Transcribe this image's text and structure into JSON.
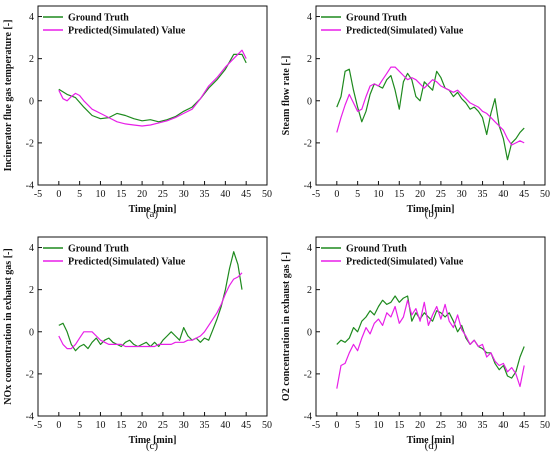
{
  "colors": {
    "ground_truth": "#1e8a1e",
    "predicted": "#e81fe8",
    "axis": "#111111"
  },
  "chart_data": [
    {
      "type": "line",
      "panel_label": "(a)",
      "xlabel": "Time [min]",
      "ylabel": "Incinerator flue gas temperature  [-]",
      "xlim": [
        -5,
        50
      ],
      "ylim": [
        -4,
        4.5
      ],
      "xticks": [
        -5,
        0,
        5,
        10,
        15,
        20,
        25,
        30,
        35,
        40,
        45,
        50
      ],
      "yticks": [
        -4,
        -2,
        0,
        2,
        4
      ],
      "legend_position": "top-left",
      "grid": false,
      "series": [
        {
          "name": "Ground Truth",
          "x": [
            0,
            2,
            4,
            6,
            8,
            10,
            12,
            14,
            16,
            18,
            20,
            22,
            24,
            26,
            28,
            30,
            32,
            34,
            36,
            38,
            40,
            42,
            44,
            45
          ],
          "y": [
            0.55,
            0.3,
            0.15,
            -0.3,
            -0.7,
            -0.85,
            -0.8,
            -0.6,
            -0.7,
            -0.85,
            -0.95,
            -0.9,
            -1.0,
            -0.9,
            -0.75,
            -0.5,
            -0.3,
            0.1,
            0.6,
            1.0,
            1.5,
            2.2,
            2.2,
            1.8
          ]
        },
        {
          "name": "Predicted(Simulated) Value",
          "x": [
            0,
            1,
            2,
            3,
            4,
            5,
            6,
            8,
            10,
            12,
            14,
            16,
            18,
            20,
            22,
            24,
            26,
            28,
            30,
            32,
            34,
            36,
            38,
            40,
            42,
            44,
            45
          ],
          "y": [
            0.5,
            0.1,
            0.0,
            0.2,
            0.35,
            0.25,
            0.0,
            -0.4,
            -0.6,
            -0.8,
            -1.0,
            -1.1,
            -1.15,
            -1.2,
            -1.15,
            -1.05,
            -0.95,
            -0.8,
            -0.6,
            -0.4,
            0.1,
            0.7,
            1.1,
            1.6,
            2.0,
            2.4,
            2.0
          ]
        }
      ]
    },
    {
      "type": "line",
      "panel_label": "(b)",
      "xlabel": "Time [min]",
      "ylabel": "Steam flow rate [-]",
      "xlim": [
        -5,
        50
      ],
      "ylim": [
        -4,
        4.5
      ],
      "xticks": [
        -5,
        0,
        5,
        10,
        15,
        20,
        25,
        30,
        35,
        40,
        45,
        50
      ],
      "yticks": [
        -4,
        -2,
        0,
        2,
        4
      ],
      "legend_position": "top-left",
      "grid": false,
      "series": [
        {
          "name": "Ground Truth",
          "x": [
            0,
            1,
            2,
            3,
            4,
            5,
            6,
            7,
            8,
            9,
            10,
            11,
            12,
            13,
            14,
            15,
            16,
            17,
            18,
            19,
            20,
            21,
            22,
            23,
            24,
            25,
            26,
            27,
            28,
            29,
            30,
            31,
            32,
            33,
            34,
            35,
            36,
            37,
            38,
            39,
            40,
            41,
            42,
            43,
            44,
            45
          ],
          "y": [
            -0.3,
            0.2,
            1.4,
            1.5,
            0.5,
            -0.3,
            -1.0,
            -0.5,
            0.3,
            0.8,
            0.7,
            0.6,
            1.0,
            1.2,
            0.5,
            -0.4,
            0.9,
            1.3,
            1.0,
            0.2,
            0.0,
            0.9,
            0.7,
            0.5,
            1.4,
            1.1,
            0.6,
            0.5,
            0.2,
            0.4,
            0.1,
            -0.1,
            -0.4,
            -0.3,
            -0.5,
            -0.8,
            -1.6,
            -0.6,
            0.1,
            -1.2,
            -1.8,
            -2.8,
            -2.0,
            -1.8,
            -1.5,
            -1.3
          ]
        },
        {
          "name": "Predicted(Simulated) Value",
          "x": [
            0,
            1,
            2,
            3,
            4,
            5,
            6,
            7,
            8,
            9,
            10,
            11,
            12,
            13,
            14,
            15,
            16,
            17,
            18,
            19,
            20,
            21,
            22,
            23,
            24,
            25,
            26,
            27,
            28,
            29,
            30,
            31,
            32,
            33,
            34,
            35,
            36,
            37,
            38,
            39,
            40,
            41,
            42,
            43,
            44,
            45
          ],
          "y": [
            -1.5,
            -0.8,
            -0.2,
            0.3,
            -0.1,
            -0.5,
            -0.4,
            0.2,
            0.7,
            0.8,
            0.7,
            1.0,
            1.3,
            1.6,
            1.6,
            1.4,
            1.2,
            1.0,
            1.1,
            1.0,
            0.8,
            0.6,
            0.8,
            1.0,
            0.9,
            0.7,
            0.6,
            0.5,
            0.4,
            0.5,
            0.3,
            0.1,
            -0.1,
            -0.2,
            -0.3,
            -0.5,
            -0.6,
            -0.8,
            -1.0,
            -1.2,
            -1.4,
            -1.8,
            -2.1,
            -2.0,
            -1.9,
            -2.0
          ]
        }
      ]
    },
    {
      "type": "line",
      "panel_label": "(c)",
      "xlabel": "Time [min]",
      "ylabel": "NOx concentration in exhaust gas [-]",
      "xlim": [
        -5,
        50
      ],
      "ylim": [
        -4,
        4.5
      ],
      "xticks": [
        -5,
        0,
        5,
        10,
        15,
        20,
        25,
        30,
        35,
        40,
        45,
        50
      ],
      "yticks": [
        -4,
        -2,
        0,
        2,
        4
      ],
      "legend_position": "top-left",
      "grid": false,
      "series": [
        {
          "name": "Ground Truth",
          "x": [
            0,
            1,
            2,
            3,
            4,
            5,
            6,
            7,
            8,
            9,
            10,
            11,
            12,
            13,
            14,
            15,
            16,
            17,
            18,
            19,
            20,
            21,
            22,
            23,
            24,
            25,
            26,
            27,
            28,
            29,
            30,
            31,
            32,
            33,
            34,
            35,
            36,
            37,
            38,
            39,
            40,
            41,
            42,
            43,
            44
          ],
          "y": [
            0.3,
            0.4,
            0.0,
            -0.6,
            -0.9,
            -0.7,
            -0.6,
            -0.8,
            -0.5,
            -0.3,
            -0.6,
            -0.4,
            -0.3,
            -0.5,
            -0.6,
            -0.7,
            -0.5,
            -0.4,
            -0.6,
            -0.7,
            -0.6,
            -0.5,
            -0.7,
            -0.5,
            -0.7,
            -0.4,
            -0.2,
            0.0,
            -0.2,
            -0.4,
            0.2,
            -0.2,
            -0.4,
            -0.3,
            -0.5,
            -0.3,
            -0.4,
            0.1,
            0.6,
            1.2,
            2.0,
            3.0,
            3.8,
            3.2,
            2.0
          ]
        },
        {
          "name": "Predicted(Simulated) Value",
          "x": [
            0,
            1,
            2,
            3,
            4,
            5,
            6,
            7,
            8,
            9,
            10,
            11,
            12,
            13,
            14,
            15,
            16,
            17,
            18,
            19,
            20,
            21,
            22,
            23,
            24,
            25,
            26,
            27,
            28,
            29,
            30,
            31,
            32,
            33,
            34,
            35,
            36,
            37,
            38,
            39,
            40,
            41,
            42,
            43,
            44
          ],
          "y": [
            -0.2,
            -0.6,
            -0.8,
            -0.8,
            -0.6,
            -0.3,
            0.0,
            0.0,
            0.0,
            -0.2,
            -0.4,
            -0.5,
            -0.6,
            -0.6,
            -0.6,
            -0.6,
            -0.7,
            -0.7,
            -0.7,
            -0.7,
            -0.7,
            -0.7,
            -0.7,
            -0.7,
            -0.6,
            -0.6,
            -0.6,
            -0.6,
            -0.5,
            -0.5,
            -0.5,
            -0.4,
            -0.4,
            -0.3,
            -0.2,
            0.0,
            0.3,
            0.6,
            0.9,
            1.3,
            1.8,
            2.2,
            2.5,
            2.6,
            2.8
          ]
        }
      ]
    },
    {
      "type": "line",
      "panel_label": "(d)",
      "xlabel": "Time [min]",
      "ylabel": "O2 concentration in exhaust gas [-]",
      "xlim": [
        -5,
        50
      ],
      "ylim": [
        -4,
        4.5
      ],
      "xticks": [
        -5,
        0,
        5,
        10,
        15,
        20,
        25,
        30,
        35,
        40,
        45,
        50
      ],
      "yticks": [
        -4,
        -2,
        0,
        2,
        4
      ],
      "legend_position": "top-left",
      "grid": false,
      "series": [
        {
          "name": "Ground Truth",
          "x": [
            0,
            1,
            2,
            3,
            4,
            5,
            6,
            7,
            8,
            9,
            10,
            11,
            12,
            13,
            14,
            15,
            16,
            17,
            18,
            19,
            20,
            21,
            22,
            23,
            24,
            25,
            26,
            27,
            28,
            29,
            30,
            31,
            32,
            33,
            34,
            35,
            36,
            37,
            38,
            39,
            40,
            41,
            42,
            43,
            44,
            45
          ],
          "y": [
            -0.6,
            -0.4,
            -0.5,
            -0.3,
            0.2,
            0.0,
            0.5,
            0.7,
            1.0,
            0.8,
            1.2,
            1.5,
            1.3,
            1.4,
            1.7,
            1.4,
            1.6,
            1.7,
            0.5,
            0.9,
            0.6,
            0.9,
            0.7,
            0.5,
            1.0,
            0.9,
            0.7,
            0.9,
            0.5,
            0.0,
            0.3,
            -0.3,
            -0.6,
            -0.4,
            -0.7,
            -0.8,
            -1.0,
            -1.0,
            -1.5,
            -1.8,
            -1.6,
            -2.1,
            -2.2,
            -1.9,
            -1.2,
            -0.7
          ]
        },
        {
          "name": "Predicted(Simulated) Value",
          "x": [
            0,
            1,
            2,
            3,
            4,
            5,
            6,
            7,
            8,
            9,
            10,
            11,
            12,
            13,
            14,
            15,
            16,
            17,
            18,
            19,
            20,
            21,
            22,
            23,
            24,
            25,
            26,
            27,
            28,
            29,
            30,
            31,
            32,
            33,
            34,
            35,
            36,
            37,
            38,
            39,
            40,
            41,
            42,
            43,
            44,
            45
          ],
          "y": [
            -2.7,
            -1.6,
            -1.5,
            -1.0,
            -0.6,
            -0.9,
            -0.3,
            0.2,
            -0.1,
            0.4,
            0.6,
            0.3,
            0.9,
            0.7,
            1.2,
            0.4,
            0.7,
            1.5,
            0.8,
            1.1,
            0.5,
            1.4,
            0.3,
            0.8,
            1.2,
            0.6,
            1.3,
            0.5,
            0.2,
            0.8,
            0.1,
            -0.2,
            -0.6,
            -0.4,
            -0.7,
            -0.6,
            -1.2,
            -1.0,
            -1.4,
            -1.6,
            -1.5,
            -1.9,
            -1.7,
            -2.0,
            -2.6,
            -1.6
          ]
        }
      ]
    }
  ]
}
